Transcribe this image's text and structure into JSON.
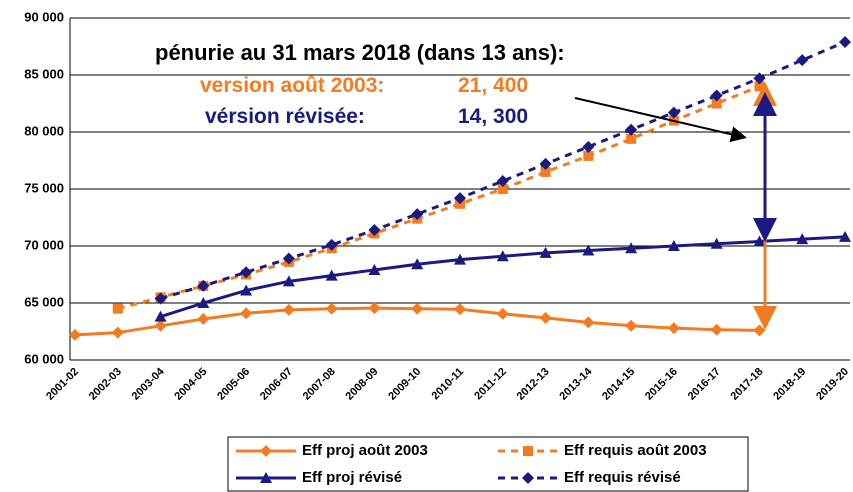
{
  "chart_data": {
    "type": "line",
    "annotations": {
      "headline": "pénurie au 31 mars 2018 (dans 13 ans):",
      "original_label": "version août 2003:",
      "original_value": "21, 400",
      "revised_label": "vérsion révisée:",
      "revised_value": "14, 300"
    },
    "categories": [
      "2001-02",
      "2002-03",
      "2003-04",
      "2004-05",
      "2005-06",
      "2006-07",
      "2007-08",
      "2008-09",
      "2009-10",
      "2010-11",
      "2011-12",
      "2012-13",
      "2013-14",
      "2014-15",
      "2015-16",
      "2016-17",
      "2017-18",
      "2018-19",
      "2019-20"
    ],
    "series": [
      {
        "name": "Eff proj août 2003",
        "color": "#f47c20",
        "marker": "diamond",
        "dash": false,
        "values": [
          62200,
          62400,
          63000,
          63600,
          64100,
          64400,
          64500,
          64550,
          64500,
          64450,
          64050,
          63700,
          63300,
          63000,
          62800,
          62650,
          62600,
          null,
          null
        ]
      },
      {
        "name": "Eff requis août 2003",
        "color": "#f47c20",
        "marker": "square",
        "dash": true,
        "values": [
          null,
          64500,
          65500,
          66500,
          67500,
          68600,
          69800,
          71100,
          72400,
          73700,
          75000,
          76500,
          77900,
          79400,
          81000,
          82500,
          84000,
          null,
          null
        ]
      },
      {
        "name": "Eff proj révisé",
        "color": "#1a1a80",
        "marker": "triangle",
        "dash": false,
        "values": [
          null,
          null,
          63800,
          65000,
          66100,
          66900,
          67400,
          67900,
          68400,
          68800,
          69100,
          69400,
          69600,
          69800,
          70000,
          70200,
          70400,
          70600,
          70800
        ]
      },
      {
        "name": "Eff requis révisé",
        "color": "#1a1a80",
        "marker": "diamond",
        "dash": true,
        "values": [
          null,
          null,
          65400,
          66500,
          67700,
          68900,
          70100,
          71400,
          72800,
          74200,
          75700,
          77200,
          78700,
          80200,
          81700,
          83200,
          84700,
          86300,
          87900
        ]
      }
    ],
    "ylim": [
      60000,
      90000
    ],
    "yticks": [
      {
        "value": 60000,
        "label": "60 000"
      },
      {
        "value": 65000,
        "label": "65 000"
      },
      {
        "value": 70000,
        "label": "70 000"
      },
      {
        "value": 75000,
        "label": "75 000"
      },
      {
        "value": 80000,
        "label": "80 000"
      },
      {
        "value": 85000,
        "label": "85 000"
      },
      {
        "value": 90000,
        "label": "90 000"
      }
    ],
    "grid": true
  }
}
